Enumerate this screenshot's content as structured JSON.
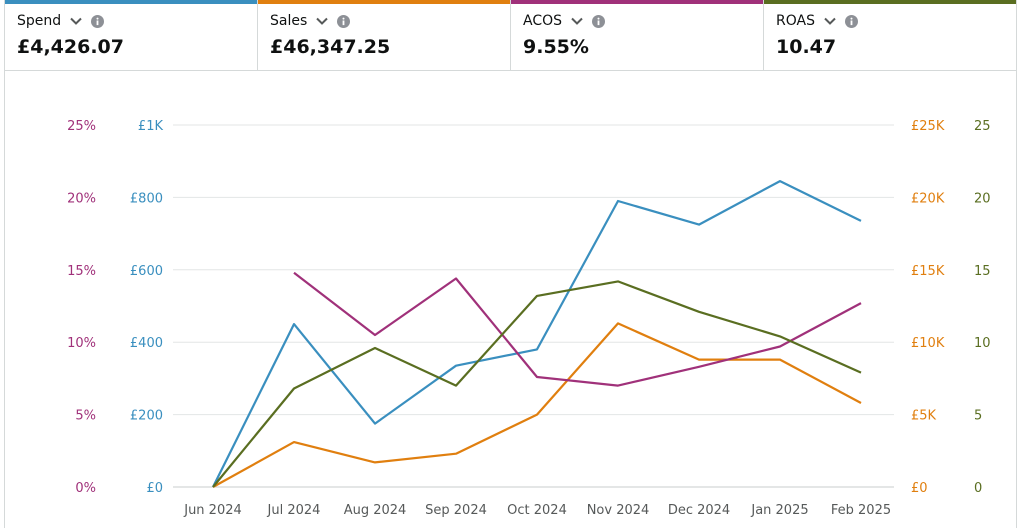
{
  "metrics": [
    {
      "label": "Spend",
      "value": "£4,426.07",
      "color": "#3a8fbf",
      "icon": "chevron-down-icon",
      "info_icon": "info-icon"
    },
    {
      "label": "Sales",
      "value": "£46,347.25",
      "color": "#e07f0f",
      "icon": "chevron-down-icon",
      "info_icon": "info-icon"
    },
    {
      "label": "ACOS",
      "value": "9.55%",
      "color": "#a0317a",
      "icon": "chevron-down-icon",
      "info_icon": "info-icon"
    },
    {
      "label": "ROAS",
      "value": "10.47",
      "color": "#5a6e21",
      "icon": "chevron-down-icon",
      "info_icon": "info-icon"
    }
  ],
  "chart_data": {
    "type": "line",
    "grid": true,
    "categories": [
      "Jun 2024",
      "Jul 2024",
      "Aug 2024",
      "Sep 2024",
      "Oct 2024",
      "Nov 2024",
      "Dec 2024",
      "Jan 2025",
      "Feb 2025"
    ],
    "axes": {
      "acos": {
        "side": "left-outer",
        "color": "#a0317a",
        "range": [
          0,
          25
        ],
        "ticks": [
          "0%",
          "5%",
          "10%",
          "15%",
          "20%",
          "25%"
        ]
      },
      "spend": {
        "side": "left-inner",
        "color": "#3a8fbf",
        "range": [
          0,
          1000
        ],
        "ticks": [
          "£0",
          "£200",
          "£400",
          "£600",
          "£800",
          "£1K"
        ]
      },
      "sales": {
        "side": "right-inner",
        "color": "#e07f0f",
        "range": [
          0,
          25000
        ],
        "ticks": [
          "£0",
          "£5K",
          "£10K",
          "£15K",
          "£20K",
          "£25K"
        ]
      },
      "roas": {
        "side": "right-outer",
        "color": "#5a6e21",
        "range": [
          0,
          25
        ],
        "ticks": [
          "0",
          "5",
          "10",
          "15",
          "20",
          "25"
        ]
      }
    },
    "series": [
      {
        "key": "spend",
        "axis": "spend",
        "color": "#3a8fbf",
        "values": [
          0,
          450,
          175,
          335,
          380,
          790,
          725,
          845,
          735
        ]
      },
      {
        "key": "sales",
        "axis": "sales",
        "color": "#e07f0f",
        "values": [
          0,
          3100,
          1700,
          2300,
          5000,
          11300,
          8800,
          8800,
          5800
        ]
      },
      {
        "key": "acos",
        "axis": "acos",
        "color": "#a0317a",
        "values": [
          null,
          14.8,
          10.5,
          14.4,
          7.6,
          7.0,
          8.3,
          9.7,
          12.7
        ]
      },
      {
        "key": "roas",
        "axis": "roas",
        "color": "#5a6e21",
        "values": [
          0,
          6.8,
          9.6,
          7.0,
          13.2,
          14.2,
          12.1,
          10.4,
          7.9
        ]
      }
    ]
  }
}
